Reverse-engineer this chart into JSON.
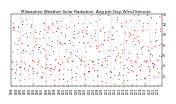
{
  "title": "Milwaukee Weather Solar Radiation  Avg per Day W/m2/minute",
  "title_fontsize": 3.0,
  "background_color": "#ffffff",
  "dot_color_main": "#ff0000",
  "dot_color_secondary": "#000000",
  "ylim": [
    0,
    14
  ],
  "yticks": [
    2,
    4,
    6,
    8,
    10,
    12,
    14
  ],
  "ytick_labels": [
    "2",
    "4",
    "6",
    "8",
    "10",
    "12",
    "14"
  ],
  "start_year": 1988,
  "end_year": 2022,
  "x_tick_years": [
    1988,
    1989,
    1990,
    1991,
    1992,
    1993,
    1994,
    1995,
    1996,
    1997,
    1998,
    1999,
    2000,
    2001,
    2002,
    2003,
    2004,
    2005,
    2006,
    2007,
    2008,
    2009,
    2010,
    2011,
    2012,
    2013,
    2014,
    2015,
    2016,
    2017,
    2018,
    2019,
    2020,
    2021,
    2022
  ],
  "vgrid_years": [
    1990,
    1993,
    1996,
    1999,
    2002,
    2005,
    2008,
    2011,
    2014,
    2017,
    2020
  ],
  "seed": 42
}
